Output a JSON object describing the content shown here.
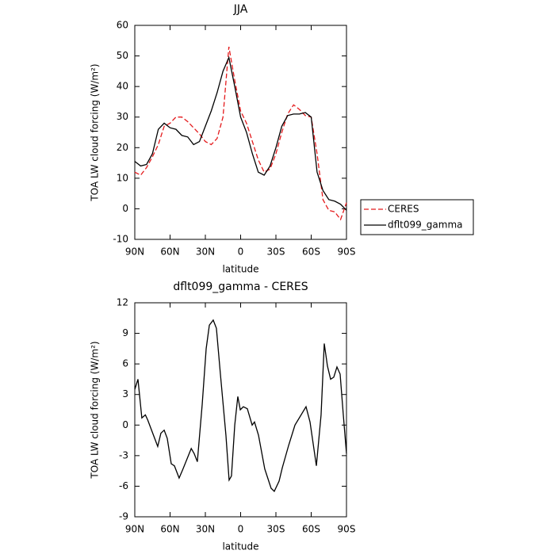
{
  "chart_data": [
    {
      "type": "line",
      "title": "JJA",
      "xlabel": "latitude",
      "ylabel": "TOA LW cloud forcing (W/m²)",
      "xlim": [
        90,
        -90
      ],
      "xticks": [
        {
          "value": 90,
          "label": "90N"
        },
        {
          "value": 60,
          "label": "60N"
        },
        {
          "value": 30,
          "label": "30N"
        },
        0,
        {
          "value": -30,
          "label": "30S"
        },
        {
          "value": -60,
          "label": "60S"
        },
        {
          "value": -90,
          "label": "90S"
        }
      ],
      "ylim": [
        -10,
        60
      ],
      "yticks": [
        -10,
        0,
        10,
        20,
        30,
        40,
        50,
        60
      ],
      "x": [
        90,
        85,
        80,
        75,
        70,
        65,
        60,
        55,
        50,
        45,
        40,
        35,
        30,
        25,
        20,
        15,
        10,
        5,
        0,
        -5,
        -10,
        -15,
        -20,
        -25,
        -30,
        -35,
        -40,
        -45,
        -50,
        -55,
        -60,
        -65,
        -70,
        -75,
        -80,
        -85,
        -90
      ],
      "series": [
        {
          "name": "CERES",
          "color": "#e41a1c",
          "dashed": true,
          "values": [
            12,
            11,
            13.5,
            17,
            21,
            27,
            28,
            30,
            30,
            28.5,
            26.5,
            24.5,
            22,
            21,
            23,
            30,
            53,
            42,
            32,
            28,
            22,
            16,
            12,
            13,
            18,
            25,
            31,
            34,
            32.5,
            30.5,
            30,
            18,
            3,
            -0.5,
            -1,
            -3.5,
            2
          ]
        },
        {
          "name": "dflt099_gamma",
          "color": "#000000",
          "dashed": false,
          "values": [
            15.5,
            14,
            14.5,
            18,
            26,
            28,
            26.5,
            26,
            24,
            23.5,
            21,
            22,
            27,
            32,
            38,
            45,
            49.5,
            40,
            30,
            25,
            18,
            12,
            11,
            14,
            20,
            27,
            30.5,
            31,
            31,
            31.5,
            30,
            12,
            6,
            3,
            2.5,
            1.5,
            -0.5
          ]
        }
      ]
    },
    {
      "type": "line",
      "title": "dflt099_gamma - CERES",
      "xlabel": "latitude",
      "ylabel": "TOA LW cloud forcing (W/m²)",
      "xlim": [
        90,
        -90
      ],
      "xticks": [
        {
          "value": 90,
          "label": "90N"
        },
        {
          "value": 60,
          "label": "60N"
        },
        {
          "value": 30,
          "label": "30N"
        },
        0,
        {
          "value": -30,
          "label": "30S"
        },
        {
          "value": -60,
          "label": "60S"
        },
        {
          "value": -90,
          "label": "90S"
        }
      ],
      "ylim": [
        -9,
        12
      ],
      "yticks": [
        -9,
        -6,
        -3,
        0,
        3,
        6,
        9,
        12
      ],
      "x": [
        90,
        87.3,
        84,
        81,
        79,
        70.5,
        67.8,
        65,
        62.4,
        59,
        56.3,
        52.3,
        49,
        42,
        39.5,
        36.8,
        32.7,
        29.3,
        26.6,
        23.3,
        20.6,
        17.2,
        12.5,
        9.8,
        7.8,
        5,
        2.4,
        0.3,
        -2.3,
        -5.7,
        -9.8,
        -11.8,
        -15.2,
        -20.5,
        -25.9,
        -28.6,
        -32.7,
        -35.4,
        -40.8,
        -46.2,
        -55.6,
        -59,
        -64.4,
        -68.4,
        -71.1,
        -73.8,
        -76.5,
        -79.2,
        -81.9,
        -84.6,
        -87.3,
        -90
      ],
      "series": [
        {
          "color": "#000000",
          "dashed": false,
          "values": [
            3.5,
            4.5,
            0.7,
            1,
            0.5,
            -2.1,
            -0.8,
            -0.5,
            -1.3,
            -3.8,
            -4,
            -5.2,
            -4.3,
            -2.3,
            -2.8,
            -3.6,
            2,
            7.5,
            9.8,
            10.3,
            9.5,
            5,
            -1,
            -5.4,
            -5,
            0,
            2.8,
            1.5,
            1.8,
            1.6,
            0,
            0.3,
            -1,
            -4.3,
            -6.2,
            -6.5,
            -5.5,
            -4.2,
            -2,
            0,
            1.8,
            0.3,
            -4,
            1,
            8,
            5.8,
            4.5,
            4.7,
            5.7,
            5,
            1,
            -2.8
          ]
        }
      ]
    }
  ]
}
